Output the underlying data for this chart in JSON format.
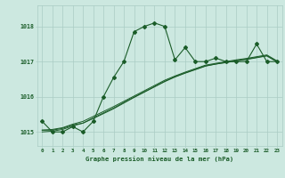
{
  "title": "Graphe pression niveau de la mer (hPa)",
  "background_color": "#cce8e0",
  "grid_color": "#aaccc4",
  "line_color": "#1a5c28",
  "xlim": [
    -0.5,
    23.5
  ],
  "ylim": [
    1014.6,
    1018.6
  ],
  "yticks": [
    1015,
    1016,
    1017,
    1018
  ],
  "xticks": [
    0,
    1,
    2,
    3,
    4,
    5,
    6,
    7,
    8,
    9,
    10,
    11,
    12,
    13,
    14,
    15,
    16,
    17,
    18,
    19,
    20,
    21,
    22,
    23
  ],
  "series1": [
    1015.3,
    1015.0,
    1015.0,
    1015.15,
    1015.0,
    1015.3,
    1016.0,
    1016.55,
    1017.0,
    1017.85,
    1018.0,
    1018.1,
    1018.0,
    1017.05,
    1017.4,
    1017.0,
    1017.0,
    1017.1,
    1017.0,
    1017.0,
    1017.0,
    1017.5,
    1017.0,
    1017.0
  ],
  "series2": [
    1015.05,
    1015.05,
    1015.1,
    1015.2,
    1015.25,
    1015.38,
    1015.52,
    1015.66,
    1015.82,
    1015.98,
    1016.13,
    1016.28,
    1016.43,
    1016.56,
    1016.67,
    1016.77,
    1016.87,
    1016.93,
    1016.97,
    1017.02,
    1017.07,
    1017.12,
    1017.17,
    1017.0
  ],
  "series3": [
    1015.05,
    1015.07,
    1015.12,
    1015.22,
    1015.3,
    1015.44,
    1015.58,
    1015.72,
    1015.87,
    1016.02,
    1016.17,
    1016.32,
    1016.47,
    1016.59,
    1016.7,
    1016.8,
    1016.9,
    1016.95,
    1017.0,
    1017.05,
    1017.09,
    1017.14,
    1017.19,
    1017.02
  ],
  "series4": [
    1015.0,
    1015.02,
    1015.07,
    1015.17,
    1015.25,
    1015.4,
    1015.54,
    1015.68,
    1015.84,
    1015.99,
    1016.14,
    1016.29,
    1016.44,
    1016.57,
    1016.68,
    1016.78,
    1016.88,
    1016.93,
    1016.98,
    1017.02,
    1017.06,
    1017.11,
    1017.16,
    1016.99
  ]
}
